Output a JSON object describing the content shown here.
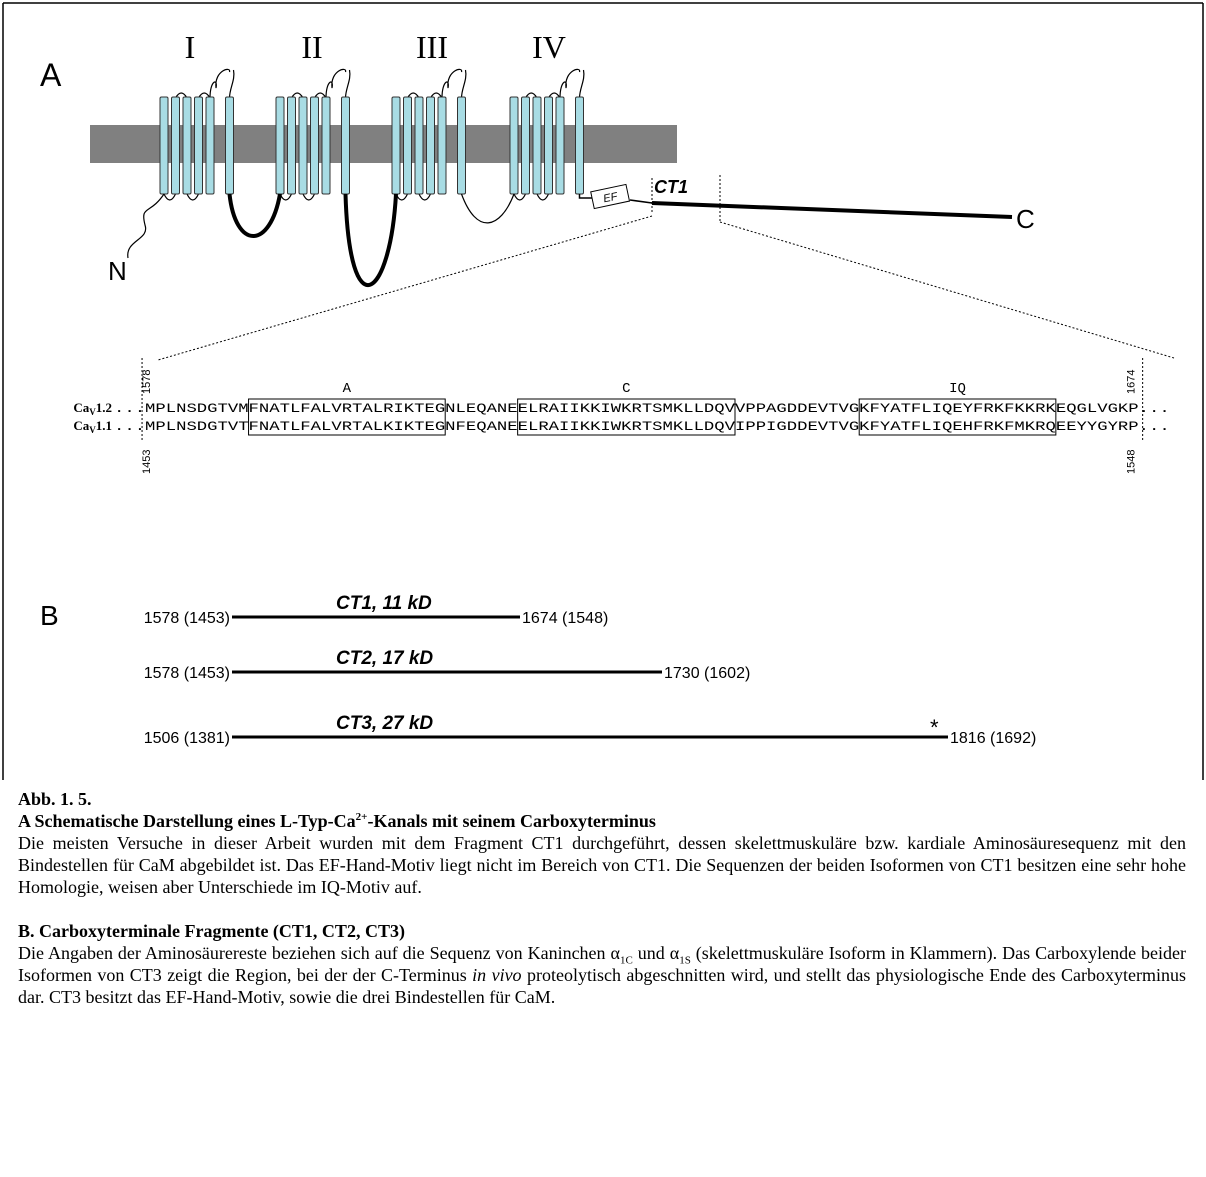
{
  "panel_a": {
    "label": "A",
    "domains": [
      "I",
      "II",
      "III",
      "IV"
    ],
    "n_terminus": "N",
    "c_terminus": "C",
    "ef_hand": "EF",
    "fragment": "CT1",
    "motifs": [
      "A",
      "C",
      "IQ"
    ],
    "sequences": [
      {
        "name": "Ca",
        "subscript": "V",
        "suffix": "1.2",
        "start": "1578",
        "end": "1674",
        "segments": [
          "...MPLNSDGTVM",
          "FNATLFALVRTALRIKTEG",
          "NLEQANE",
          "ELRAIIKKIWKRTSMKLLDQV",
          "VPPAGDDEVTVG",
          "KFYATFLIQEYFRKFKKRK",
          "EQGLVGKP..."
        ]
      },
      {
        "name": "Ca",
        "subscript": "V",
        "suffix": "1.1",
        "start": "1453",
        "end": "1548",
        "segments": [
          "...MPLNSDGTVT",
          "FNATLFALVRTALKIKTEG",
          "NFEQANE",
          "ELRAIIKKIWKRTSMKLLDQV",
          "IPPIGDDEVTVG",
          "KFYATFLIQEHFRKFMKRQ",
          "EEYYGYRP..."
        ]
      }
    ]
  },
  "panel_b": {
    "label": "B",
    "fragments": [
      {
        "start": "1578 (1453)",
        "name": "CT1, 11 kD",
        "end": "1674 (1548)"
      },
      {
        "start": "1578 (1453)",
        "name": "CT2, 17 kD",
        "end": "1730 (1602)"
      },
      {
        "start": "1506 (1381)",
        "name": "CT3, 27 kD",
        "end": "1816 (1692)",
        "marker": "*"
      }
    ]
  },
  "caption": {
    "number": "Abb. 1. 5.",
    "a": {
      "title": [
        "A Schematische Darstellung eines L-Typ-Ca",
        "2+",
        "-Kanals mit seinem Carboxyterminus"
      ],
      "body": "Die meisten Versuche in dieser Arbeit wurden mit dem Fragment CT1 durchgeführt, dessen skelettmuskuläre bzw. kardiale Aminosäuresequenz mit den Bindestellen für CaM abgebildet ist. Das EF-Hand-Motiv liegt nicht im Bereich von CT1. Die Sequenzen der beiden Isoformen von CT1 besitzen eine sehr hohe Homologie, weisen aber Unterschiede im IQ-Motiv auf."
    },
    "b": {
      "title": "B. Carboxyterminale Fragmente (CT1, CT2, CT3)",
      "body": [
        "Die Angaben der Aminosäurereste beziehen sich auf die Sequenz von Kaninchen ",
        "α",
        "1C",
        " und ",
        "α",
        "1S",
        " (skelettmuskuläre Isoform in Klammern). Das Carboxylende beider Isoformen von CT3 zeigt die Region, bei der der C-Terminus ",
        "in vivo",
        " proteolytisch abgeschnitten wird, und stellt das physiologische Ende des Carboxyterminus dar. CT3 besitzt das EF-Hand-Motiv, sowie die drei Bindestellen für CaM."
      ]
    }
  }
}
